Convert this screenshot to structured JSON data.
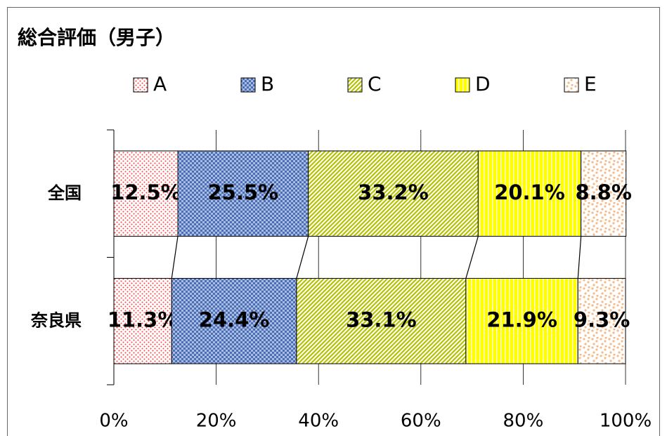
{
  "chart_data": {
    "type": "stacked-bar-horizontal",
    "title": "総合評価（男子）",
    "categories": [
      "全国",
      "奈良県"
    ],
    "series": [
      {
        "name": "A",
        "color": "#ff3b3b",
        "values": [
          12.5,
          11.3
        ],
        "value_labels": [
          "12.5%",
          "11.3%"
        ]
      },
      {
        "name": "B",
        "color": "#4a6fb5",
        "values": [
          25.5,
          24.4
        ],
        "value_labels": [
          "25.5%",
          "24.4%"
        ]
      },
      {
        "name": "C",
        "color": "#b5c200",
        "values": [
          33.2,
          33.1
        ],
        "value_labels": [
          "33.2%",
          "33.1%"
        ]
      },
      {
        "name": "D",
        "color": "#ffff00",
        "values": [
          20.1,
          21.9
        ],
        "value_labels": [
          "20.1%",
          "21.9%"
        ]
      },
      {
        "name": "E",
        "color": "#f5b98a",
        "values": [
          8.8,
          9.3
        ],
        "value_labels": [
          "8.8%",
          "9.3%"
        ]
      }
    ],
    "xlim": [
      0,
      100
    ],
    "xticks": [
      {
        "value": 0,
        "label": "0%"
      },
      {
        "value": 20,
        "label": "20%"
      },
      {
        "value": 40,
        "label": "40%"
      },
      {
        "value": 60,
        "label": "60%"
      },
      {
        "value": 80,
        "label": "80%"
      },
      {
        "value": 100,
        "label": "100%"
      }
    ],
    "grid": true,
    "legend": "top"
  }
}
